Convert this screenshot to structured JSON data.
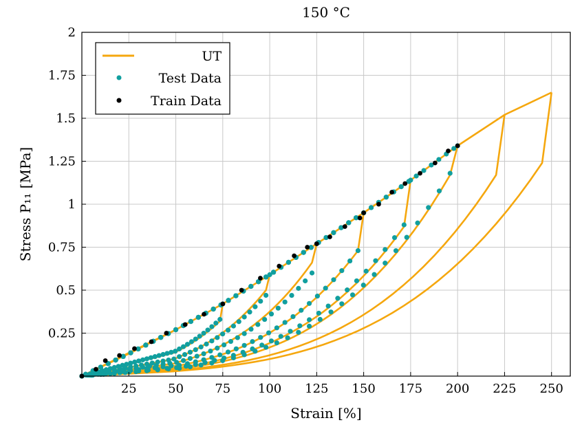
{
  "chart_data": {
    "type": "line",
    "title": "150 °C",
    "xlabel": "Strain [%]",
    "ylabel": "Stress P₁₁ [MPa]",
    "xlim": [
      0,
      260
    ],
    "ylim": [
      0,
      2
    ],
    "xticks": [
      25,
      50,
      75,
      100,
      125,
      150,
      175,
      200,
      225,
      250
    ],
    "yticks": [
      0.25,
      0.5,
      0.75,
      1,
      1.25,
      1.5,
      1.75,
      2
    ],
    "xtick_labels": [
      "25",
      "50",
      "75",
      "100",
      "125",
      "150",
      "175",
      "200",
      "225",
      "250"
    ],
    "ytick_labels": [
      "0.25",
      "0.5",
      "0.75",
      "1",
      "1.25",
      "1.5",
      "1.75",
      "2"
    ],
    "grid": true,
    "legend_position": "top-left",
    "colors": {
      "ut": "#F5A70E",
      "test": "#119F9F",
      "train": "#000000"
    },
    "series": [
      {
        "name": "UT",
        "kind": "line",
        "envelope": [
          [
            0,
            0
          ],
          [
            25,
            0.13
          ],
          [
            50,
            0.27
          ],
          [
            75,
            0.42
          ],
          [
            100,
            0.59
          ],
          [
            125,
            0.77
          ],
          [
            150,
            0.95
          ],
          [
            175,
            1.14
          ],
          [
            200,
            1.34
          ],
          [
            225,
            1.52
          ],
          [
            250,
            1.65
          ]
        ],
        "max_strains": [
          50,
          75,
          100,
          125,
          150,
          175,
          200,
          225,
          250
        ],
        "unload_drop": [
          [
            50,
            0.2
          ],
          [
            75,
            0.32
          ],
          [
            100,
            0.5
          ],
          [
            125,
            0.66
          ],
          [
            150,
            0.73
          ],
          [
            175,
            0.87
          ],
          [
            200,
            1.17
          ],
          [
            225,
            1.17
          ],
          [
            250,
            1.24
          ]
        ],
        "unload_mid": [
          [
            50,
            0.17
          ],
          [
            75,
            0.25
          ],
          [
            100,
            0.35
          ],
          [
            125,
            0.42
          ],
          [
            150,
            0.45
          ],
          [
            175,
            0.5
          ],
          [
            200,
            0.62
          ],
          [
            225,
            0.58
          ],
          [
            250,
            0.62
          ]
        ],
        "unload_end": [
          [
            50,
            0.12
          ],
          [
            75,
            0.12
          ],
          [
            100,
            0.12
          ],
          [
            125,
            0.12
          ],
          [
            150,
            0.12
          ],
          [
            175,
            0.12
          ],
          [
            200,
            0.12
          ],
          [
            225,
            0.12
          ],
          [
            250,
            0.12
          ]
        ]
      },
      {
        "name": "Test Data",
        "kind": "scatter",
        "max_strains": [
          75,
          100,
          125,
          150,
          175,
          200
        ],
        "peaks": [
          [
            75,
            0.42
          ],
          [
            100,
            0.59
          ],
          [
            125,
            0.77
          ],
          [
            150,
            0.95
          ],
          [
            175,
            1.14
          ],
          [
            200,
            1.34
          ]
        ],
        "unload_drop": [
          [
            75,
            0.33
          ],
          [
            100,
            0.47
          ],
          [
            125,
            0.6
          ],
          [
            150,
            0.73
          ],
          [
            175,
            0.88
          ],
          [
            200,
            1.18
          ]
        ],
        "unload_mid": [
          [
            75,
            0.28
          ],
          [
            100,
            0.37
          ],
          [
            125,
            0.45
          ],
          [
            150,
            0.47
          ],
          [
            175,
            0.55
          ],
          [
            200,
            0.7
          ]
        ]
      },
      {
        "name": "Train Data",
        "kind": "scatter",
        "points": [
          [
            0,
            0
          ],
          [
            7.5,
            0.04
          ],
          [
            12.5,
            0.09
          ],
          [
            20,
            0.12
          ],
          [
            28,
            0.16
          ],
          [
            37,
            0.2
          ],
          [
            45,
            0.25
          ],
          [
            55,
            0.3
          ],
          [
            65,
            0.36
          ],
          [
            75,
            0.42
          ],
          [
            85,
            0.5
          ],
          [
            95,
            0.57
          ],
          [
            105,
            0.64
          ],
          [
            113,
            0.7
          ],
          [
            120,
            0.75
          ],
          [
            125,
            0.77
          ],
          [
            132,
            0.81
          ],
          [
            140,
            0.87
          ],
          [
            148,
            0.92
          ],
          [
            150,
            0.95
          ],
          [
            158,
            1.0
          ],
          [
            165,
            1.07
          ],
          [
            172,
            1.12
          ],
          [
            180,
            1.18
          ],
          [
            188,
            1.24
          ],
          [
            195,
            1.31
          ],
          [
            200,
            1.34
          ]
        ]
      }
    ]
  }
}
